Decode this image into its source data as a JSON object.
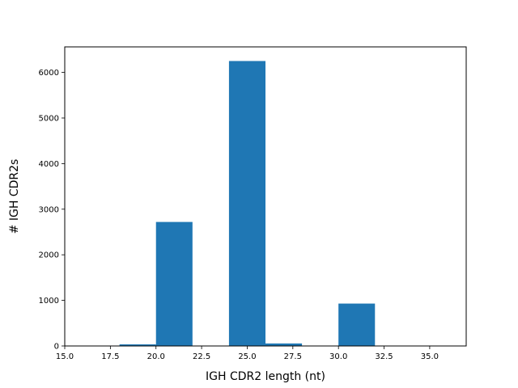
{
  "chart_data": {
    "type": "bar",
    "subtype": "histogram",
    "title": "",
    "xlabel": "IGH CDR2 length (nt)",
    "ylabel": "# IGH CDR2s",
    "xlim": [
      15,
      37
    ],
    "ylim": [
      0,
      6560
    ],
    "x_ticks": [
      15.0,
      17.5,
      20.0,
      22.5,
      25.0,
      27.5,
      30.0,
      32.5,
      35.0
    ],
    "x_tick_labels": [
      "15.0",
      "17.5",
      "20.0",
      "22.5",
      "25.0",
      "27.5",
      "30.0",
      "32.5",
      "35.0"
    ],
    "y_ticks": [
      0,
      1000,
      2000,
      3000,
      4000,
      5000,
      6000
    ],
    "y_tick_labels": [
      "0",
      "1000",
      "2000",
      "3000",
      "4000",
      "5000",
      "6000"
    ],
    "bins": [
      {
        "x0": 18,
        "x1": 20,
        "value": 35
      },
      {
        "x0": 20,
        "x1": 22,
        "value": 2720
      },
      {
        "x0": 22,
        "x1": 24,
        "value": 0
      },
      {
        "x0": 24,
        "x1": 26,
        "value": 6250
      },
      {
        "x0": 26,
        "x1": 28,
        "value": 55
      },
      {
        "x0": 28,
        "x1": 30,
        "value": 0
      },
      {
        "x0": 30,
        "x1": 32,
        "value": 930
      },
      {
        "x0": 32,
        "x1": 34,
        "value": 0
      },
      {
        "x0": 34,
        "x1": 36,
        "value": 0
      }
    ],
    "bar_color": "#1f77b4",
    "grid": false,
    "legend": "none"
  }
}
